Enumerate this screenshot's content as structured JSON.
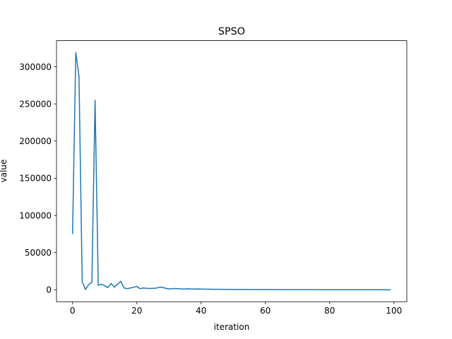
{
  "chart_data": {
    "type": "line",
    "title": "SPSO",
    "xlabel": "iteration",
    "ylabel": "value",
    "xlim": [
      -5,
      104
    ],
    "ylim": [
      -16000,
      335000
    ],
    "xticks": [
      0,
      20,
      40,
      60,
      80,
      100
    ],
    "yticks": [
      0,
      50000,
      100000,
      150000,
      200000,
      250000,
      300000
    ],
    "grid": false,
    "line_color": "#1f77b4",
    "series": [
      {
        "x": [
          0,
          1,
          2,
          3,
          4,
          5,
          6,
          7,
          8,
          9,
          10,
          11,
          12,
          13,
          14,
          15,
          16,
          17,
          18,
          19,
          20,
          21,
          22,
          23,
          24,
          25,
          26,
          27,
          28,
          29,
          30,
          31,
          32,
          33,
          34,
          35,
          36,
          37,
          38,
          39,
          40,
          41,
          42,
          43,
          44,
          45,
          46,
          47,
          48,
          49,
          50,
          51,
          52,
          53,
          54,
          55,
          56,
          57,
          58,
          59,
          60,
          61,
          62,
          63,
          64,
          65,
          66,
          67,
          68,
          69,
          70,
          71,
          72,
          73,
          74,
          75,
          76,
          77,
          78,
          79,
          80,
          81,
          82,
          83,
          84,
          85,
          86,
          87,
          88,
          89,
          90,
          91,
          92,
          93,
          94,
          95,
          96,
          97,
          98,
          99
        ],
        "values": [
          75000,
          319000,
          287000,
          11000,
          500,
          7000,
          10000,
          255000,
          6000,
          7500,
          5500,
          3000,
          8500,
          3500,
          7500,
          11500,
          2500,
          1500,
          2500,
          3500,
          4500,
          1500,
          2500,
          2000,
          1800,
          2000,
          2200,
          3500,
          3200,
          2000,
          1200,
          1500,
          1800,
          1500,
          1000,
          1200,
          1400,
          1100,
          1000,
          1200,
          1000,
          900,
          850,
          800,
          700,
          700,
          650,
          600,
          600,
          550,
          500,
          500,
          480,
          450,
          420,
          400,
          380,
          360,
          340,
          320,
          300,
          300,
          290,
          280,
          270,
          260,
          250,
          240,
          230,
          220,
          210,
          200,
          200,
          190,
          180,
          170,
          160,
          150,
          150,
          140,
          130,
          120,
          120,
          110,
          100,
          100,
          90,
          90,
          80,
          80,
          70,
          70,
          60,
          60,
          50,
          50,
          40,
          40,
          30,
          30
        ]
      }
    ]
  }
}
